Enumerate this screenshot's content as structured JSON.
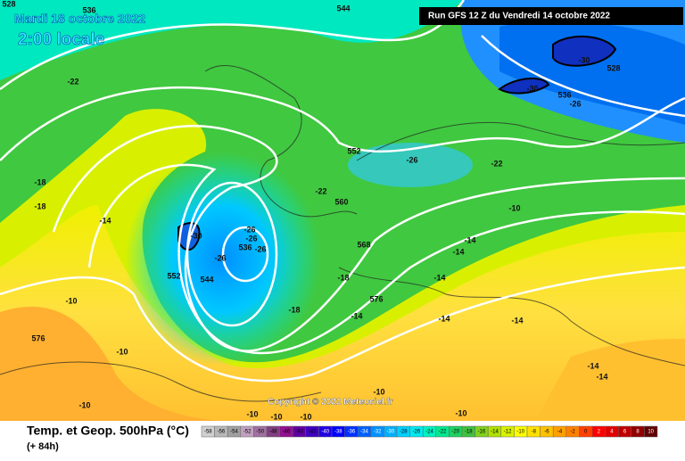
{
  "header": {
    "date": "Mardi 18 octobre 2022",
    "time": "2:00 locale",
    "run": "Run GFS 12 Z du Vendredi 14 octobre 2022"
  },
  "copyright": "Copyright © 2022 Meteociel.fr",
  "footer": {
    "title": "Temp. et Geop. 500hPa (°C)",
    "lead": "(+ 84h)"
  },
  "scale": {
    "labels": [
      -58,
      -56,
      -54,
      -52,
      -50,
      -48,
      -46,
      -44,
      -42,
      -40,
      -38,
      -36,
      -34,
      -32,
      -30,
      -28,
      -26,
      -24,
      -22,
      -20,
      -18,
      -16,
      -14,
      -12,
      -10,
      -8,
      -6,
      -4,
      -2,
      0,
      2,
      4,
      6,
      8,
      10
    ],
    "colors": [
      "#d0d0d0",
      "#b8b8b8",
      "#a0a0a0",
      "#c0a0c0",
      "#a070a0",
      "#804080",
      "#901090",
      "#6000a0",
      "#4000c0",
      "#2000e0",
      "#0000ff",
      "#0030ff",
      "#0060ff",
      "#0090ff",
      "#00b0ff",
      "#00d0ff",
      "#00e8f0",
      "#00f0c0",
      "#00e890",
      "#20d060",
      "#40c040",
      "#80d020",
      "#b0e000",
      "#d8f000",
      "#ffff00",
      "#ffe000",
      "#ffc000",
      "#ffa000",
      "#ff8000",
      "#ff4000",
      "#ff0000",
      "#e00000",
      "#c00000",
      "#900000",
      "#600000"
    ]
  },
  "map_labels": [
    "528",
    "536",
    "544",
    "-22",
    "-18",
    "-18",
    "-14",
    "552",
    "-26",
    "-22",
    "560",
    "-30",
    "-26",
    "-26",
    "536",
    "-26",
    "-26",
    "552",
    "544",
    "568",
    "-18",
    "-18",
    "576",
    "-14",
    "-10",
    "576",
    "-10",
    "-10",
    "-10",
    "-10",
    "-10",
    "-10",
    "-10",
    "-14",
    "-14",
    "-14",
    "-14",
    "-14",
    "-14",
    "-14",
    "-10",
    "-22",
    "-30",
    "528",
    "-30",
    "536",
    "-26"
  ]
}
